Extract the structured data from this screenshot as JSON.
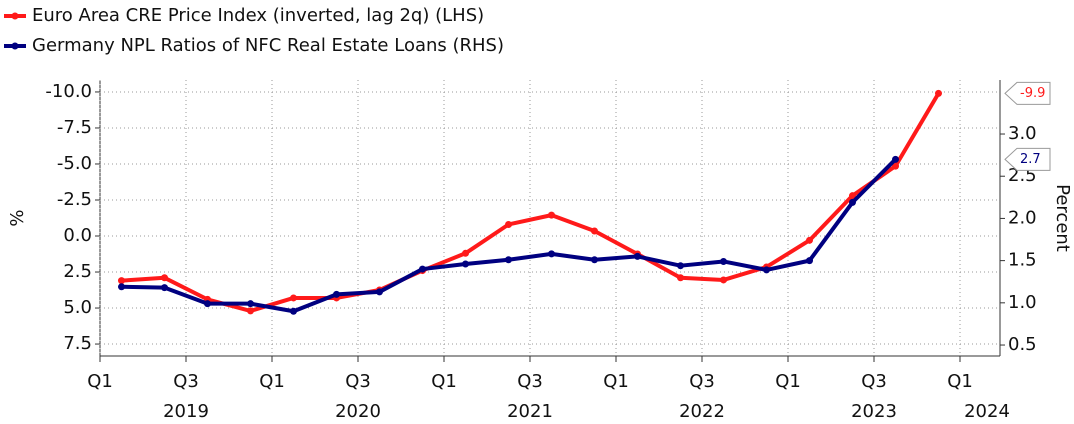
{
  "chart_data": {
    "type": "line",
    "x": [
      "2019-Q1",
      "2019-Q2",
      "2019-Q3",
      "2019-Q4",
      "2020-Q1",
      "2020-Q2",
      "2020-Q3",
      "2020-Q4",
      "2021-Q1",
      "2021-Q2",
      "2021-Q3",
      "2021-Q4",
      "2022-Q1",
      "2022-Q2",
      "2022-Q3",
      "2022-Q4",
      "2023-Q1",
      "2023-Q2",
      "2023-Q3",
      "2023-Q4"
    ],
    "series": [
      {
        "name": "Euro Area CRE Price Index (inverted, lag 2q) (LHS)",
        "color": "#ff1a1a",
        "axis": "y",
        "values": [
          3.1,
          2.9,
          4.4,
          5.2,
          4.3,
          4.3,
          3.75,
          2.4,
          1.2,
          -0.8,
          -1.45,
          -0.35,
          1.25,
          2.9,
          3.05,
          2.15,
          0.3,
          -2.8,
          -4.85,
          -9.9
        ],
        "last_value_label": "-9.9"
      },
      {
        "name": "Germany NPL Ratios of NFC Real Estate Loans (RHS)",
        "color": "#000080",
        "axis": "y2",
        "values": [
          1.19,
          1.18,
          0.99,
          0.99,
          0.9,
          1.1,
          1.13,
          1.4,
          1.46,
          1.51,
          1.58,
          1.51,
          1.55,
          1.44,
          1.49,
          1.39,
          1.5,
          2.19,
          2.7,
          null
        ],
        "last_value_label": "2.7"
      }
    ],
    "ylabel": "%",
    "y2label": "Percent",
    "y_inverted": true,
    "ylim": [
      8.33,
      -10.83
    ],
    "yticks": [
      {
        "value": -10,
        "label": "-10.0"
      },
      -7.5,
      {
        "value": -5,
        "label": "-5.0"
      },
      -2.5,
      {
        "value": 0,
        "label": "0.0"
      },
      2.5,
      {
        "value": 5,
        "label": "5.0"
      },
      7.5
    ],
    "y2lim": [
      0.37,
      3.64
    ],
    "y2ticks": [
      0.5,
      {
        "value": 1,
        "label": "1.0"
      },
      1.5,
      {
        "value": 2,
        "label": "2.0"
      },
      2.5,
      {
        "value": 3,
        "label": "3.0"
      }
    ],
    "xticks": [
      {
        "value": "2019-Q1",
        "label": "Q1"
      },
      {
        "value": "2019-Q3",
        "label": "Q3"
      },
      {
        "value": "2020-Q1",
        "label": "Q1"
      },
      {
        "value": "2020-Q3",
        "label": "Q3"
      },
      {
        "value": "2021-Q1",
        "label": "Q1"
      },
      {
        "value": "2021-Q3",
        "label": "Q3"
      },
      {
        "value": "2022-Q1",
        "label": "Q1"
      },
      {
        "value": "2022-Q3",
        "label": "Q3"
      },
      {
        "value": "2023-Q1",
        "label": "Q1"
      },
      {
        "value": "2023-Q3",
        "label": "Q3"
      },
      {
        "value": "2024-Q1",
        "label": "Q1"
      }
    ],
    "x_year_labels": [
      {
        "value": "2019-Q3",
        "label": "2019"
      },
      {
        "value": "2020-Q3",
        "label": "2020"
      },
      {
        "value": "2021-Q3",
        "label": "2021"
      },
      {
        "value": "2022-Q3",
        "label": "2022"
      },
      {
        "value": "2023-Q3",
        "label": "2023"
      },
      {
        "value": "2024-Q1",
        "label": "2024"
      }
    ],
    "grid": true,
    "legend": "top-left"
  }
}
